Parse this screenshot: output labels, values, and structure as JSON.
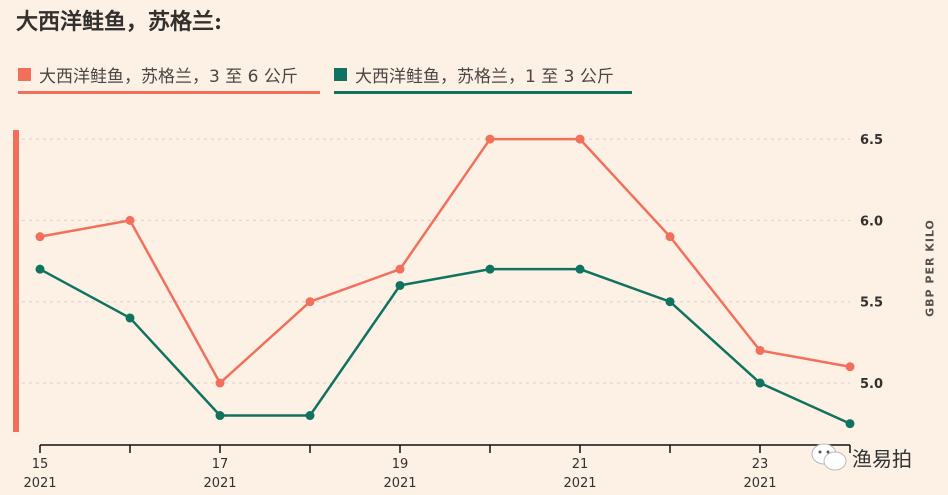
{
  "title": "大西洋鲑鱼，苏格兰:",
  "colors": {
    "series1": "#f2705b",
    "series2": "#0f7360",
    "background": "#fdf1e6"
  },
  "watermark": "渔易拍",
  "chart_data": {
    "type": "line",
    "title": "大西洋鲑鱼，苏格兰:",
    "x": [
      15,
      16,
      17,
      18,
      19,
      20,
      21,
      22,
      23,
      24
    ],
    "x_ticks": [
      {
        "label": "15",
        "year": "2021",
        "x": 15
      },
      {
        "label": "17",
        "year": "2021",
        "x": 17
      },
      {
        "label": "19",
        "year": "2021",
        "x": 19
      },
      {
        "label": "21",
        "year": "2021",
        "x": 21
      },
      {
        "label": "23",
        "year": "2021",
        "x": 23
      }
    ],
    "y_ticks": [
      "5.0",
      "5.5",
      "6.0",
      "6.5"
    ],
    "ylim": [
      4.7,
      6.7
    ],
    "xlim": [
      15,
      24
    ],
    "ylabel": "GBP PER KILO",
    "xlabel": "",
    "grid": true,
    "legend_position": "top-left",
    "series": [
      {
        "name": "大西洋鲑鱼，苏格兰，3 至 6 公斤",
        "color": "#f2705b",
        "values": [
          5.9,
          6.0,
          5.0,
          5.5,
          5.7,
          6.5,
          6.5,
          5.9,
          5.2,
          5.1
        ]
      },
      {
        "name": "大西洋鲑鱼，苏格兰，1 至 3 公斤",
        "color": "#0f7360",
        "values": [
          5.7,
          5.4,
          4.8,
          4.8,
          5.6,
          5.7,
          5.7,
          5.5,
          5.0,
          4.75
        ]
      }
    ]
  }
}
